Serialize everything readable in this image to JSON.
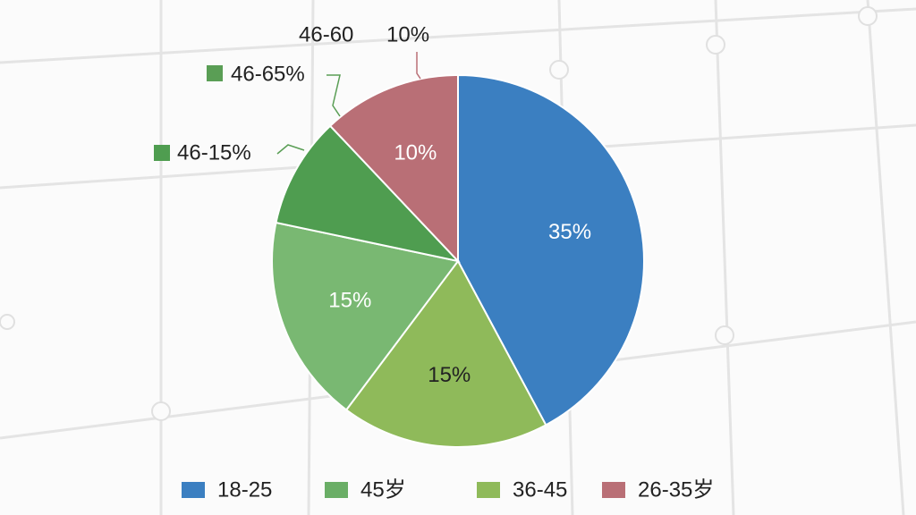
{
  "chart_data": {
    "type": "pie",
    "values": [
      35,
      15,
      15,
      8,
      10
    ],
    "value_labels": [
      "35%",
      "15%",
      "15%",
      null,
      "10%"
    ],
    "colors": [
      "#3b7fc1",
      "#8fba5a",
      "#79b872",
      "#4f9d50",
      "#b96f76"
    ],
    "label_colors": [
      "#ffffff",
      "#222222",
      "#ffffff",
      null,
      "#ffffff"
    ],
    "annotations": [
      "46-60",
      "10%",
      "46-65%",
      "46-15%"
    ],
    "legend": [
      {
        "name": "18-25",
        "color": "#3b7fc1"
      },
      {
        "name": "45岁",
        "color": "#6aae66"
      },
      {
        "name": "36-45",
        "color": "#8fba5a"
      },
      {
        "name": "26-35岁",
        "color": "#b96f76"
      }
    ]
  }
}
